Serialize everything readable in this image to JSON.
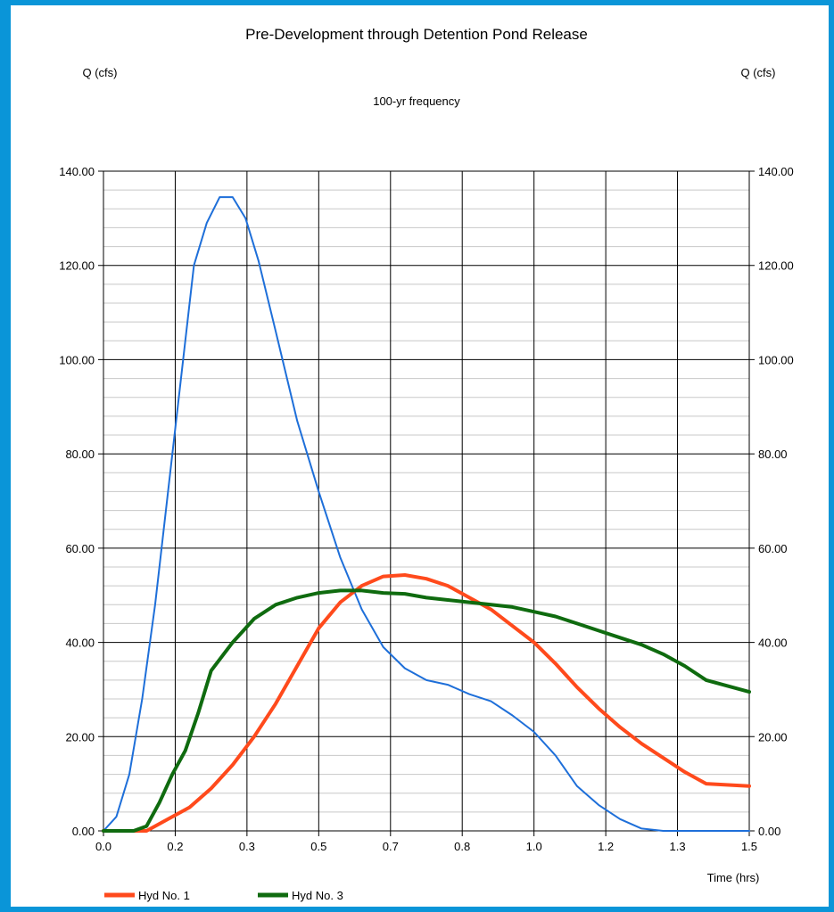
{
  "chart_data": {
    "type": "line",
    "title": "Pre-Development through Detention Pond Release",
    "subtitle": "100-yr frequency",
    "ylabel_left": "Q (cfs)",
    "ylabel_right": "Q (cfs)",
    "xlabel": "Time (hrs)",
    "xlim": [
      0,
      1.5
    ],
    "ylim": [
      0,
      140
    ],
    "x_ticks": [
      {
        "value": 0.0,
        "label": "0.0"
      },
      {
        "value": 0.1667,
        "label": "0.2"
      },
      {
        "value": 0.3333,
        "label": "0.3"
      },
      {
        "value": 0.5,
        "label": "0.5"
      },
      {
        "value": 0.6667,
        "label": "0.7"
      },
      {
        "value": 0.8333,
        "label": "0.8"
      },
      {
        "value": 1.0,
        "label": "1.0"
      },
      {
        "value": 1.1667,
        "label": "1.2"
      },
      {
        "value": 1.3333,
        "label": "1.3"
      },
      {
        "value": 1.5,
        "label": "1.5"
      }
    ],
    "y_ticks": [
      {
        "value": 0,
        "label": "0.00"
      },
      {
        "value": 20,
        "label": "20.00"
      },
      {
        "value": 40,
        "label": "40.00"
      },
      {
        "value": 60,
        "label": "60.00"
      },
      {
        "value": 80,
        "label": "80.00"
      },
      {
        "value": 100,
        "label": "100.00"
      },
      {
        "value": 120,
        "label": "120.00"
      },
      {
        "value": 140,
        "label": "140.00"
      }
    ],
    "minor_y_step": 4,
    "grid": true,
    "legend_position": "bottom-left",
    "series": [
      {
        "name": "",
        "color": "#1e6fd9",
        "width": 2,
        "in_legend": false,
        "points": [
          [
            0.0,
            0
          ],
          [
            0.03,
            3
          ],
          [
            0.06,
            12
          ],
          [
            0.09,
            28
          ],
          [
            0.12,
            48
          ],
          [
            0.15,
            72
          ],
          [
            0.18,
            96
          ],
          [
            0.21,
            120
          ],
          [
            0.24,
            129
          ],
          [
            0.27,
            134.5
          ],
          [
            0.3,
            134.5
          ],
          [
            0.33,
            130
          ],
          [
            0.36,
            121
          ],
          [
            0.4,
            106
          ],
          [
            0.45,
            87
          ],
          [
            0.5,
            72
          ],
          [
            0.55,
            58
          ],
          [
            0.6,
            47
          ],
          [
            0.65,
            39
          ],
          [
            0.7,
            34.5
          ],
          [
            0.75,
            32
          ],
          [
            0.8,
            31
          ],
          [
            0.85,
            29
          ],
          [
            0.9,
            27.5
          ],
          [
            0.95,
            24.5
          ],
          [
            1.0,
            21
          ],
          [
            1.05,
            16
          ],
          [
            1.1,
            9.5
          ],
          [
            1.15,
            5.5
          ],
          [
            1.2,
            2.5
          ],
          [
            1.25,
            0.5
          ],
          [
            1.3,
            0
          ],
          [
            1.5,
            0
          ]
        ]
      },
      {
        "name": "Hyd No. 1",
        "color": "#ff4a1c",
        "width": 4,
        "in_legend": true,
        "points": [
          [
            0.0,
            0
          ],
          [
            0.1,
            0
          ],
          [
            0.15,
            2.5
          ],
          [
            0.2,
            5
          ],
          [
            0.25,
            9
          ],
          [
            0.3,
            14
          ],
          [
            0.35,
            20
          ],
          [
            0.4,
            27
          ],
          [
            0.45,
            35
          ],
          [
            0.5,
            43
          ],
          [
            0.55,
            48.5
          ],
          [
            0.6,
            52
          ],
          [
            0.65,
            54
          ],
          [
            0.7,
            54.3
          ],
          [
            0.75,
            53.5
          ],
          [
            0.8,
            52
          ],
          [
            0.85,
            49.5
          ],
          [
            0.9,
            47
          ],
          [
            0.95,
            43.5
          ],
          [
            1.0,
            40
          ],
          [
            1.05,
            35.5
          ],
          [
            1.1,
            30.5
          ],
          [
            1.15,
            26
          ],
          [
            1.2,
            22
          ],
          [
            1.25,
            18.5
          ],
          [
            1.3,
            15.5
          ],
          [
            1.35,
            12.5
          ],
          [
            1.4,
            10
          ],
          [
            1.5,
            9.5
          ]
        ]
      },
      {
        "name": "Hyd No. 3",
        "color": "#0f6b0f",
        "width": 4,
        "in_legend": true,
        "points": [
          [
            0.0,
            0
          ],
          [
            0.07,
            0
          ],
          [
            0.1,
            1
          ],
          [
            0.13,
            6
          ],
          [
            0.16,
            12
          ],
          [
            0.19,
            17
          ],
          [
            0.22,
            25
          ],
          [
            0.25,
            34
          ],
          [
            0.3,
            40
          ],
          [
            0.35,
            45
          ],
          [
            0.4,
            48
          ],
          [
            0.45,
            49.5
          ],
          [
            0.5,
            50.5
          ],
          [
            0.55,
            51
          ],
          [
            0.6,
            51
          ],
          [
            0.65,
            50.5
          ],
          [
            0.7,
            50.3
          ],
          [
            0.75,
            49.5
          ],
          [
            0.8,
            49
          ],
          [
            0.85,
            48.5
          ],
          [
            0.9,
            48
          ],
          [
            0.95,
            47.5
          ],
          [
            1.0,
            46.5
          ],
          [
            1.05,
            45.5
          ],
          [
            1.1,
            44
          ],
          [
            1.15,
            42.5
          ],
          [
            1.2,
            41
          ],
          [
            1.25,
            39.5
          ],
          [
            1.3,
            37.5
          ],
          [
            1.35,
            35
          ],
          [
            1.4,
            32
          ],
          [
            1.5,
            29.5
          ]
        ]
      }
    ]
  }
}
